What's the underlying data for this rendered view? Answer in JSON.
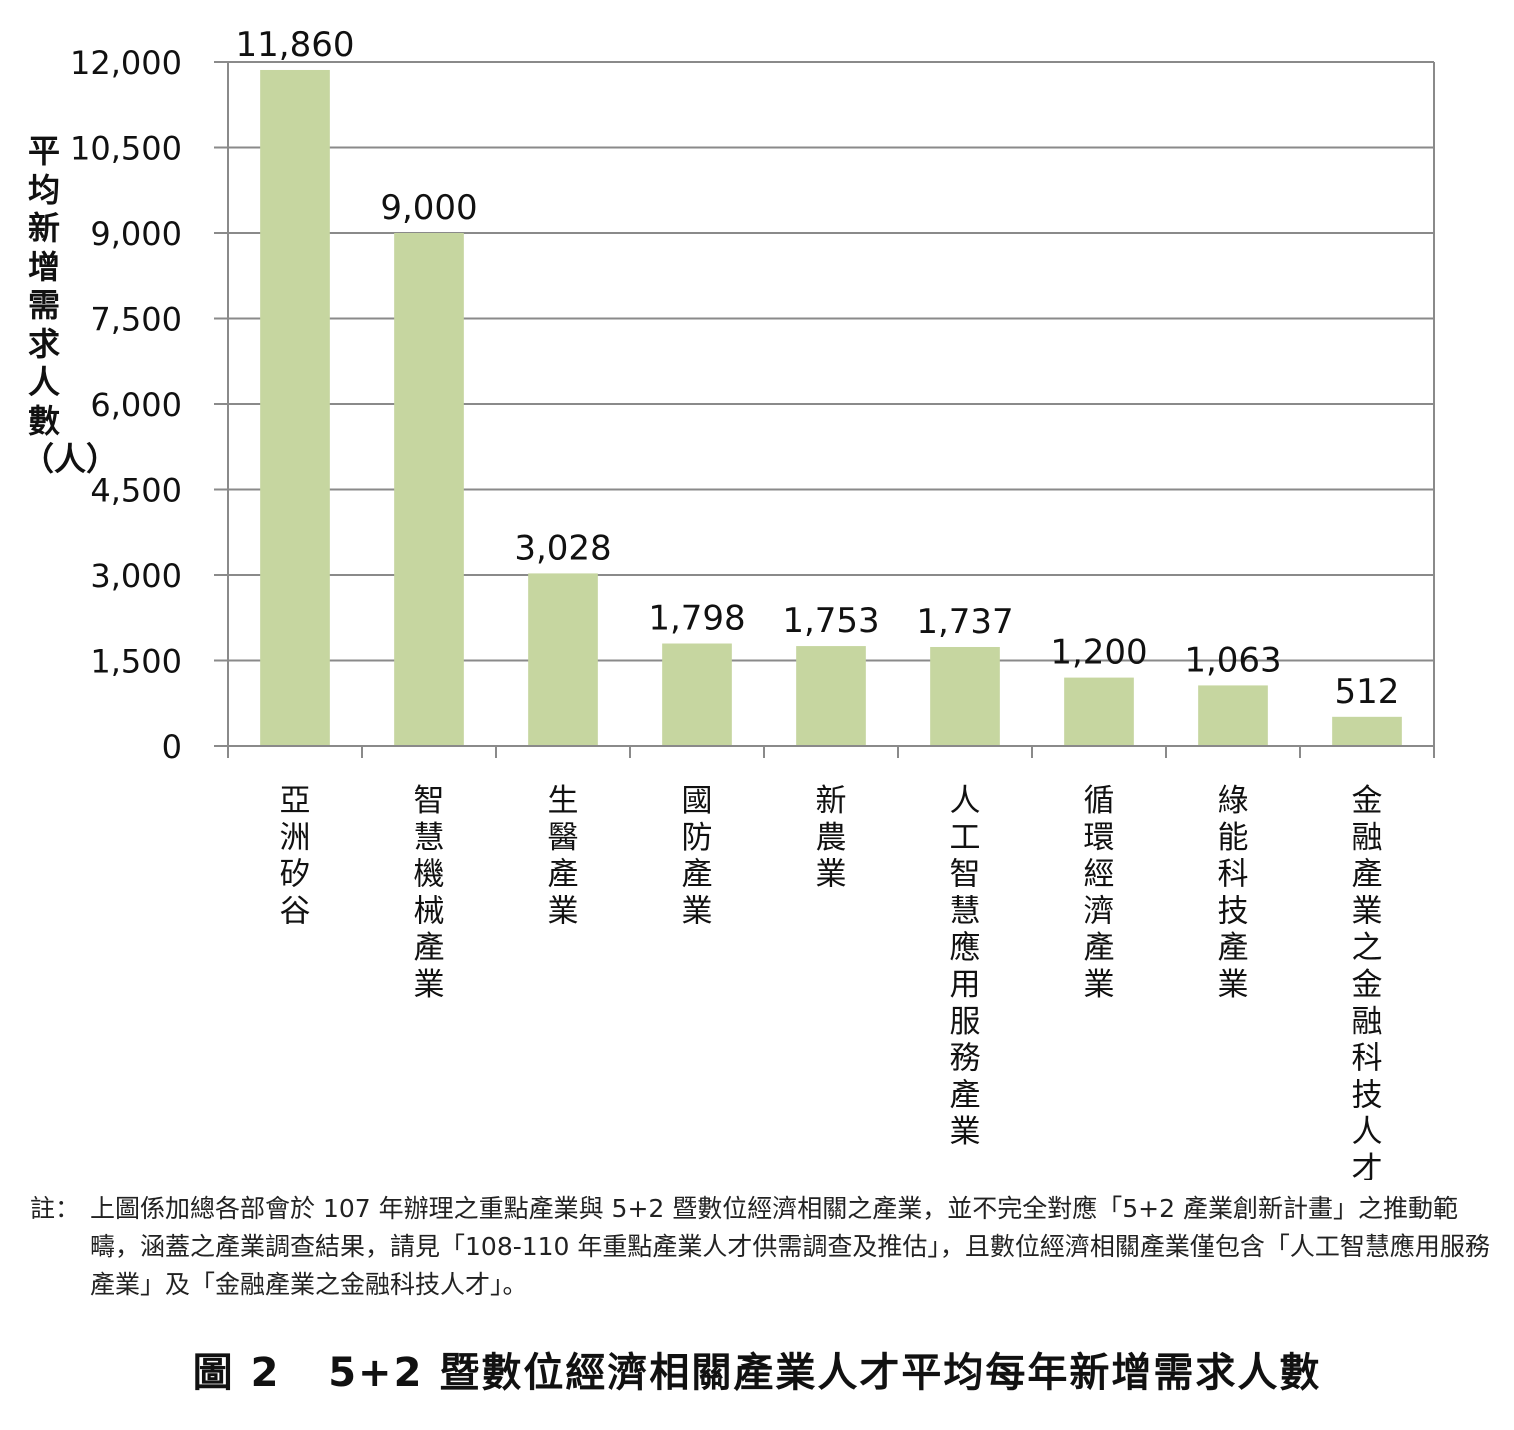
{
  "chart_data": {
    "type": "bar",
    "title": "",
    "xlabel": "",
    "ylabel": "平均新增需求人數（人）",
    "ylim": [
      0,
      12000
    ],
    "yticks": [
      0,
      1500,
      3000,
      4500,
      6000,
      7500,
      9000,
      10500,
      12000
    ],
    "ytick_labels": [
      "0",
      "1,500",
      "3,000",
      "4,500",
      "6,000",
      "7,500",
      "9,000",
      "10,500",
      "12,000"
    ],
    "grid": true,
    "legend": "none",
    "bar_color": "#c6d6a0",
    "categories": [
      "亞洲矽谷",
      "智慧機械產業",
      "生醫產業",
      "國防產業",
      "新農業",
      "人工智慧應用服務產業",
      "循環經濟產業",
      "綠能科技產業",
      "金融產業之金融科技人才"
    ],
    "values": [
      11860,
      9000,
      3028,
      1798,
      1753,
      1737,
      1200,
      1063,
      512
    ],
    "value_labels": [
      "11,860",
      "9,000",
      "3,028",
      "1,798",
      "1,753",
      "1,737",
      "1,200",
      "1,063",
      "512"
    ]
  },
  "note": {
    "head": "註：",
    "text": "上圖係加總各部會於 107 年辦理之重點產業與 5+2 暨數位經濟相關之產業，並不完全對應「5+2 產業創新計畫」之推動範疇，涵蓋之產業調查結果，請見「108-110 年重點產業人才供需調查及推估」，且數位經濟相關產業僅包含「人工智慧應用服務產業」及「金融產業之金融科技人才」。"
  },
  "figure": {
    "number": "圖 2",
    "caption": "5+2 暨數位經濟相關產業人才平均每年新增需求人數"
  }
}
